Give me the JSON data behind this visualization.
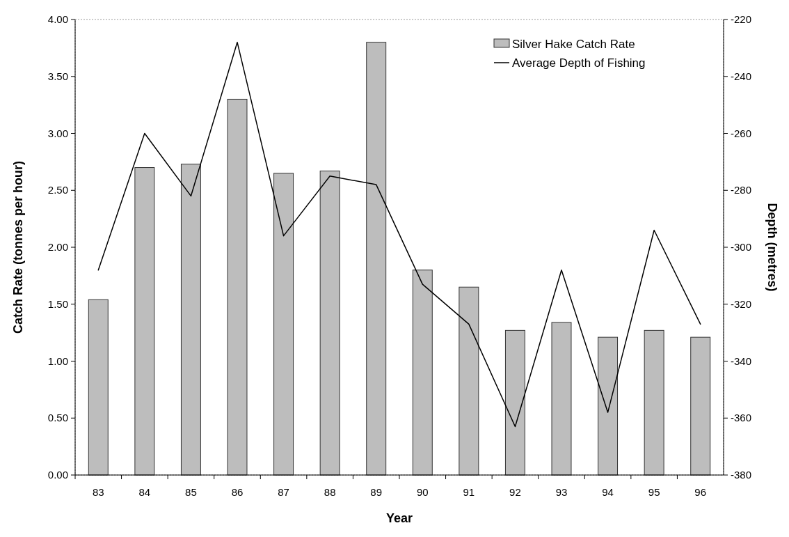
{
  "chart_data": {
    "type": "bar",
    "xlabel": "Year",
    "ylabel": "Catch Rate (tonnes per hour)",
    "y2label": "Depth (metres)",
    "categories": [
      "83",
      "84",
      "85",
      "86",
      "87",
      "88",
      "89",
      "90",
      "91",
      "92",
      "93",
      "94",
      "95",
      "96"
    ],
    "series": [
      {
        "name": "Silver Hake Catch Rate",
        "color": "#bdbdbd",
        "values": [
          1.54,
          2.7,
          2.73,
          3.3,
          2.65,
          2.67,
          3.8,
          1.8,
          1.65,
          1.27,
          1.34,
          1.21,
          1.27,
          1.21
        ]
      },
      {
        "name": "Average Depth of Fishing",
        "type": "line",
        "axis": "y2",
        "color": "#000000",
        "values": [
          -308,
          -260,
          -282,
          -228,
          -296,
          -275,
          -278,
          -313,
          -327,
          -363,
          -308,
          -358,
          -294,
          -327
        ]
      }
    ],
    "ylim": [
      0,
      4
    ],
    "yticks": [
      {
        "value": 0,
        "label": "0.00"
      },
      {
        "value": 0.5,
        "label": "0.50"
      },
      {
        "value": 1,
        "label": "1.00"
      },
      {
        "value": 1.5,
        "label": "1.50"
      },
      {
        "value": 2,
        "label": "2.00"
      },
      {
        "value": 2.5,
        "label": "2.50"
      },
      {
        "value": 3,
        "label": "3.00"
      },
      {
        "value": 3.5,
        "label": "3.50"
      },
      {
        "value": 4,
        "label": "4.00"
      }
    ],
    "y2lim": [
      -380,
      -220
    ],
    "y2ticks": [
      -380,
      -360,
      -340,
      -320,
      -300,
      -280,
      -260,
      -240,
      -220
    ],
    "legend": "top right",
    "marker": "none",
    "line_style": "solid"
  }
}
